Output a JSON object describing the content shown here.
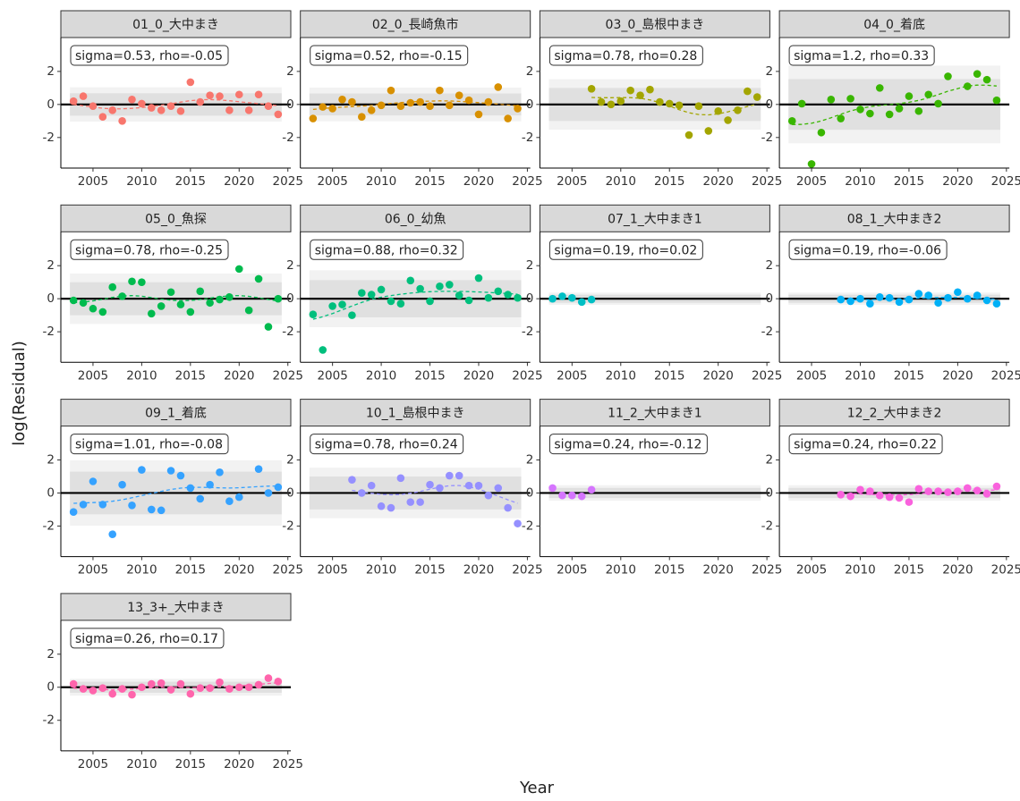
{
  "chart_data": {
    "type": "scatter",
    "x_label": "Year",
    "y_label": "log(Residual)",
    "xlim": [
      2001.7,
      2025.3
    ],
    "xticks": [
      2005,
      2010,
      2015,
      2020,
      2025
    ],
    "ylim": [
      -3.85,
      4.05
    ],
    "yticks": [
      -2,
      0,
      2
    ],
    "panels": [
      {
        "title": "01_0_大中まき",
        "annotation": "sigma=0.53, rho=-0.05",
        "sigma": 0.53,
        "rho": -0.05,
        "color": "#F8766D",
        "x": [
          2003,
          2004,
          2005,
          2006,
          2007,
          2008,
          2009,
          2010,
          2011,
          2012,
          2013,
          2014,
          2015,
          2016,
          2017,
          2018,
          2019,
          2020,
          2021,
          2022,
          2023,
          2024
        ],
        "values": [
          0.2,
          0.5,
          -0.1,
          -0.75,
          -0.35,
          -1.0,
          0.3,
          0.05,
          -0.2,
          -0.35,
          -0.1,
          -0.4,
          1.35,
          0.15,
          0.55,
          0.5,
          -0.35,
          0.6,
          -0.35,
          0.6,
          -0.1,
          -0.6
        ]
      },
      {
        "title": "02_0_長崎魚市",
        "annotation": "sigma=0.52, rho=-0.15",
        "sigma": 0.52,
        "rho": -0.15,
        "color": "#D89000",
        "x": [
          2003,
          2004,
          2005,
          2006,
          2007,
          2008,
          2009,
          2010,
          2011,
          2012,
          2013,
          2014,
          2015,
          2016,
          2017,
          2018,
          2019,
          2020,
          2021,
          2022,
          2023,
          2024
        ],
        "values": [
          -0.85,
          -0.15,
          -0.25,
          0.3,
          0.15,
          -0.75,
          -0.35,
          -0.05,
          0.85,
          -0.1,
          0.1,
          0.15,
          -0.1,
          0.85,
          -0.05,
          0.55,
          0.25,
          -0.6,
          0.15,
          1.05,
          -0.85,
          -0.25
        ]
      },
      {
        "title": "03_0_島根中まき",
        "annotation": "sigma=0.78, rho=0.28",
        "sigma": 0.78,
        "rho": 0.28,
        "color": "#A3A500",
        "x": [
          2007,
          2008,
          2009,
          2010,
          2011,
          2012,
          2013,
          2014,
          2015,
          2016,
          2017,
          2018,
          2019,
          2020,
          2021,
          2022,
          2023,
          2024
        ],
        "values": [
          0.95,
          0.15,
          0.0,
          0.2,
          0.85,
          0.55,
          0.9,
          0.15,
          0.05,
          -0.05,
          -1.85,
          -0.1,
          -1.6,
          -0.4,
          -0.95,
          -0.35,
          0.8,
          0.45
        ]
      },
      {
        "title": "04_0_着底",
        "annotation": "sigma=1.2, rho=0.33",
        "sigma": 1.2,
        "rho": 0.33,
        "color": "#39B600",
        "x": [
          2003,
          2004,
          2005,
          2006,
          2007,
          2008,
          2009,
          2010,
          2011,
          2012,
          2013,
          2014,
          2015,
          2016,
          2017,
          2018,
          2019,
          2021,
          2022,
          2023,
          2024
        ],
        "values": [
          -1.0,
          0.05,
          -3.6,
          -1.7,
          0.3,
          -0.85,
          0.35,
          -0.3,
          -0.55,
          1.0,
          -0.6,
          -0.25,
          0.5,
          -0.4,
          0.6,
          0.05,
          1.7,
          1.1,
          1.85,
          1.5,
          0.25
        ]
      },
      {
        "title": "05_0_魚探",
        "annotation": "sigma=0.78, rho=-0.25",
        "sigma": 0.78,
        "rho": -0.25,
        "color": "#00BB4E",
        "x": [
          2003,
          2004,
          2005,
          2006,
          2007,
          2008,
          2009,
          2010,
          2011,
          2012,
          2013,
          2014,
          2015,
          2016,
          2017,
          2018,
          2019,
          2020,
          2021,
          2022,
          2023,
          2024
        ],
        "values": [
          -0.1,
          -0.25,
          -0.6,
          -0.8,
          0.7,
          0.15,
          1.05,
          1.0,
          -0.9,
          -0.45,
          0.4,
          -0.35,
          -0.8,
          0.45,
          -0.25,
          -0.05,
          0.1,
          1.8,
          -0.7,
          1.2,
          -1.7,
          0.0
        ]
      },
      {
        "title": "06_0_幼魚",
        "annotation": "sigma=0.88, rho=0.32",
        "sigma": 0.88,
        "rho": 0.32,
        "color": "#00BF7D",
        "x": [
          2003,
          2004,
          2005,
          2006,
          2007,
          2008,
          2009,
          2010,
          2011,
          2012,
          2013,
          2014,
          2015,
          2016,
          2017,
          2018,
          2019,
          2020,
          2021,
          2022,
          2023,
          2024
        ],
        "values": [
          -0.95,
          -3.1,
          -0.45,
          -0.35,
          -1.0,
          0.35,
          0.25,
          0.55,
          -0.15,
          -0.3,
          1.1,
          0.6,
          -0.15,
          0.75,
          0.85,
          0.2,
          -0.1,
          1.25,
          0.05,
          0.45,
          0.25,
          0.05
        ]
      },
      {
        "title": "07_1_大中まき1",
        "annotation": "sigma=0.19, rho=0.02",
        "sigma": 0.19,
        "rho": 0.02,
        "color": "#00BFC4",
        "x": [
          2003,
          2004,
          2005,
          2006,
          2007
        ],
        "values": [
          0.0,
          0.15,
          0.05,
          -0.2,
          -0.05
        ]
      },
      {
        "title": "08_1_大中まき2",
        "annotation": "sigma=0.19, rho=-0.06",
        "sigma": 0.19,
        "rho": -0.06,
        "color": "#00B0F6",
        "x": [
          2008,
          2009,
          2010,
          2011,
          2012,
          2013,
          2014,
          2015,
          2016,
          2017,
          2018,
          2019,
          2020,
          2021,
          2022,
          2023,
          2024
        ],
        "values": [
          -0.05,
          -0.15,
          0.0,
          -0.3,
          0.1,
          0.05,
          -0.2,
          -0.05,
          0.3,
          0.2,
          -0.25,
          0.05,
          0.4,
          0.0,
          0.2,
          -0.1,
          -0.3
        ]
      },
      {
        "title": "09_1_着底",
        "annotation": "sigma=1.01, rho=-0.08",
        "sigma": 1.01,
        "rho": -0.08,
        "color": "#35A2FF",
        "x": [
          2003,
          2004,
          2005,
          2006,
          2007,
          2008,
          2009,
          2010,
          2011,
          2012,
          2013,
          2014,
          2015,
          2016,
          2017,
          2018,
          2019,
          2020,
          2022,
          2023,
          2024
        ],
        "values": [
          -1.15,
          -0.7,
          0.7,
          -0.7,
          -2.5,
          0.5,
          -0.75,
          1.4,
          -1.0,
          -1.05,
          1.35,
          1.05,
          0.3,
          -0.35,
          0.5,
          1.25,
          -0.5,
          -0.25,
          1.45,
          0.0,
          0.35
        ]
      },
      {
        "title": "10_1_島根中まき",
        "annotation": "sigma=0.78, rho=0.24",
        "sigma": 0.78,
        "rho": 0.24,
        "color": "#9590FF",
        "x": [
          2007,
          2008,
          2009,
          2010,
          2011,
          2012,
          2013,
          2014,
          2015,
          2016,
          2017,
          2018,
          2019,
          2020,
          2021,
          2022,
          2023,
          2024
        ],
        "values": [
          0.8,
          0.0,
          0.45,
          -0.8,
          -0.9,
          0.9,
          -0.55,
          -0.55,
          0.5,
          0.3,
          1.05,
          1.05,
          0.45,
          0.45,
          -0.15,
          0.3,
          -0.9,
          -1.85
        ]
      },
      {
        "title": "11_2_大中まき1",
        "annotation": "sigma=0.24, rho=-0.12",
        "sigma": 0.24,
        "rho": -0.12,
        "color": "#D575FE",
        "x": [
          2003,
          2004,
          2005,
          2006,
          2007
        ],
        "values": [
          0.3,
          -0.15,
          -0.15,
          -0.2,
          0.2
        ]
      },
      {
        "title": "12_2_大中まき2",
        "annotation": "sigma=0.24, rho=0.22",
        "sigma": 0.24,
        "rho": 0.22,
        "color": "#F962DD",
        "x": [
          2008,
          2009,
          2010,
          2011,
          2012,
          2013,
          2014,
          2015,
          2016,
          2017,
          2018,
          2019,
          2020,
          2021,
          2022,
          2023,
          2024
        ],
        "values": [
          -0.1,
          -0.2,
          0.2,
          0.1,
          -0.15,
          -0.25,
          -0.3,
          -0.55,
          0.25,
          0.1,
          0.1,
          0.05,
          0.1,
          0.3,
          0.15,
          -0.05,
          0.4
        ]
      },
      {
        "title": "13_3+_大中まき",
        "annotation": "sigma=0.26, rho=0.17",
        "sigma": 0.26,
        "rho": 0.17,
        "color": "#FF65AC",
        "x": [
          2003,
          2004,
          2005,
          2006,
          2007,
          2008,
          2009,
          2010,
          2011,
          2012,
          2013,
          2014,
          2015,
          2016,
          2017,
          2018,
          2019,
          2020,
          2021,
          2022,
          2023,
          2024
        ],
        "values": [
          0.2,
          -0.1,
          -0.2,
          -0.05,
          -0.4,
          -0.1,
          -0.45,
          0.0,
          0.2,
          0.25,
          -0.15,
          0.2,
          -0.4,
          -0.05,
          -0.05,
          0.3,
          -0.1,
          0.0,
          0.0,
          0.15,
          0.55,
          0.35
        ]
      }
    ]
  }
}
